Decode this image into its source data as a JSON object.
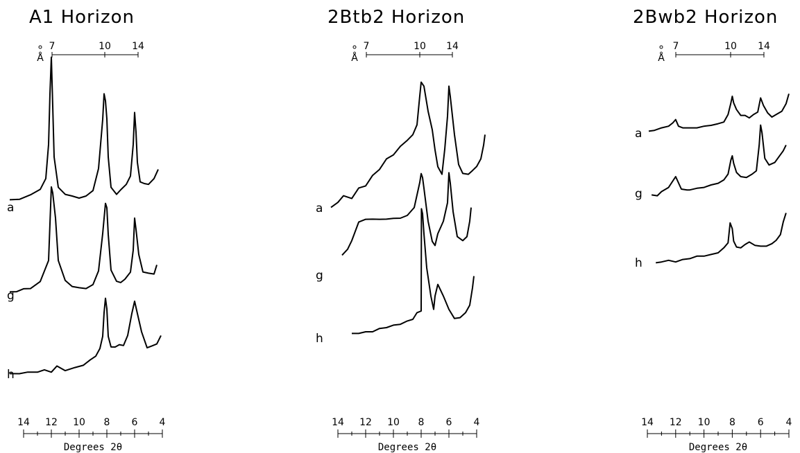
{
  "chart_data": [
    {
      "type": "line",
      "title": "A1 Horizon",
      "d_spacing_unit": "Å",
      "d_spacing_ticks": [
        "7",
        "10",
        "14"
      ],
      "xlabel": "Degrees 2θ",
      "x_ticks": [
        "14",
        "12",
        "10",
        "8",
        "6",
        "4"
      ],
      "xlim": [
        14,
        4
      ],
      "samples": [
        {
          "name": "a",
          "x": [
            15.0,
            14.3,
            13.5,
            12.8,
            12.4,
            12.2,
            12.1,
            12.0,
            11.9,
            11.8,
            11.5,
            11.0,
            10.5,
            10.0,
            9.5,
            9.0,
            8.6,
            8.3,
            8.2,
            8.1,
            8.0,
            7.9,
            7.7,
            7.3,
            7.0,
            6.6,
            6.3,
            6.1,
            6.0,
            5.9,
            5.8,
            5.6,
            5.3,
            5.0,
            4.6,
            4.3
          ],
          "y": [
            0.5,
            0.6,
            0.9,
            1.4,
            2.2,
            5.0,
            9.0,
            12.0,
            8.0,
            4.0,
            1.5,
            1.0,
            0.8,
            0.7,
            0.8,
            1.3,
            3.0,
            7.0,
            9.0,
            8.5,
            7.0,
            4.0,
            1.5,
            1.0,
            1.3,
            1.8,
            2.4,
            5.0,
            7.5,
            6.0,
            3.5,
            2.0,
            1.8,
            1.8,
            2.2,
            3.0
          ]
        },
        {
          "name": "g",
          "x": [
            15.0,
            14.5,
            14.0,
            13.5,
            12.8,
            12.2,
            12.0,
            11.9,
            11.7,
            11.5,
            11.0,
            10.5,
            10.0,
            9.5,
            9.0,
            8.6,
            8.3,
            8.1,
            8.0,
            7.9,
            7.7,
            7.3,
            7.0,
            6.7,
            6.3,
            6.1,
            6.0,
            5.9,
            5.7,
            5.4,
            5.0,
            4.6,
            4.4
          ],
          "y": [
            0.4,
            0.5,
            0.7,
            0.8,
            1.4,
            3.5,
            10.5,
            10.0,
            7.5,
            3.5,
            1.5,
            1.0,
            0.8,
            0.8,
            1.1,
            2.5,
            6.0,
            9.0,
            8.5,
            6.0,
            2.5,
            1.5,
            1.3,
            1.7,
            2.3,
            4.5,
            7.5,
            6.5,
            4.0,
            2.4,
            2.2,
            2.2,
            3.0
          ]
        },
        {
          "name": "h",
          "x": [
            15.0,
            14.3,
            13.7,
            13.0,
            12.5,
            12.0,
            11.6,
            11.0,
            10.3,
            9.7,
            9.2,
            8.8,
            8.5,
            8.3,
            8.2,
            8.1,
            8.0,
            7.9,
            7.7,
            7.4,
            7.1,
            6.8,
            6.5,
            6.2,
            6.0,
            5.8,
            5.5,
            5.1,
            4.8,
            4.4,
            4.1
          ],
          "y": [
            0.0,
            0.1,
            0.2,
            0.3,
            0.5,
            0.3,
            1.0,
            0.5,
            0.8,
            1.2,
            1.8,
            2.4,
            3.3,
            5.0,
            8.0,
            10.0,
            8.5,
            5.0,
            3.5,
            3.6,
            3.8,
            3.8,
            5.0,
            8.0,
            9.5,
            8.0,
            5.5,
            3.5,
            3.6,
            4.0,
            5.0
          ]
        }
      ]
    },
    {
      "type": "line",
      "title": "2Btb2 Horizon",
      "d_spacing_unit": "Å",
      "d_spacing_ticks": [
        "7",
        "10",
        "14"
      ],
      "xlabel": "Degrees 2θ",
      "x_ticks": [
        "14",
        "12",
        "10",
        "8",
        "6",
        "4"
      ],
      "xlim": [
        14,
        4
      ],
      "samples": [
        {
          "name": "a",
          "x": [
            14.5,
            14.0,
            13.6,
            13.0,
            12.5,
            12.0,
            11.5,
            11.0,
            10.5,
            10.0,
            9.5,
            9.0,
            8.6,
            8.3,
            8.1,
            8.0,
            7.8,
            7.5,
            7.2,
            7.0,
            6.8,
            6.5,
            6.3,
            6.1,
            6.0,
            5.9,
            5.6,
            5.3,
            5.0,
            4.6,
            4.3,
            4.0,
            3.7,
            3.5,
            3.4
          ],
          "y": [
            0.0,
            0.6,
            1.2,
            1.0,
            2.0,
            2.3,
            3.3,
            4.0,
            5.0,
            5.5,
            6.3,
            7.0,
            7.5,
            8.6,
            11.5,
            13.0,
            12.5,
            10.0,
            8.0,
            6.0,
            4.2,
            3.5,
            6.0,
            9.5,
            12.5,
            11.5,
            7.5,
            4.5,
            3.5,
            3.5,
            3.8,
            4.3,
            5.0,
            6.5,
            7.5
          ]
        },
        {
          "name": "g",
          "x": [
            13.7,
            13.3,
            13.0,
            12.5,
            12.0,
            11.5,
            11.0,
            10.5,
            10.0,
            9.5,
            9.0,
            8.5,
            8.1,
            8.0,
            7.9,
            7.8,
            7.5,
            7.2,
            7.0,
            6.8,
            6.4,
            6.1,
            6.0,
            5.9,
            5.7,
            5.4,
            5.0,
            4.7,
            4.5,
            4.4
          ],
          "y": [
            1.5,
            2.2,
            3.0,
            5.0,
            5.2,
            5.3,
            5.2,
            5.3,
            5.3,
            5.4,
            5.6,
            6.5,
            9.0,
            10.0,
            9.5,
            8.5,
            5.0,
            3.0,
            2.5,
            3.8,
            5.0,
            7.0,
            10.0,
            9.0,
            6.0,
            3.5,
            3.0,
            3.5,
            5.0,
            6.5
          ]
        },
        {
          "name": "h",
          "x": [
            13.0,
            12.5,
            12.0,
            11.5,
            11.0,
            10.5,
            10.0,
            9.5,
            9.0,
            8.6,
            8.3,
            8.0,
            7.98,
            7.9,
            7.8,
            7.6,
            7.3,
            7.1,
            7.0,
            6.8,
            6.4,
            6.0,
            5.6,
            5.2,
            4.8,
            4.5,
            4.3,
            4.2
          ],
          "y": [
            0.0,
            0.1,
            0.2,
            0.3,
            0.6,
            0.8,
            1.0,
            1.2,
            1.5,
            1.8,
            2.5,
            2.8,
            15.0,
            14.5,
            12.0,
            8.0,
            4.5,
            3.0,
            4.5,
            6.0,
            4.5,
            3.0,
            1.8,
            2.0,
            2.5,
            3.5,
            5.5,
            7.0
          ]
        }
      ]
    },
    {
      "type": "line",
      "title": "2Bwb2 Horizon",
      "d_spacing_unit": "Å",
      "d_spacing_ticks": [
        "7",
        "10",
        "14"
      ],
      "xlabel": "Degrees 2θ",
      "x_ticks": [
        "14",
        "12",
        "10",
        "8",
        "6",
        "4"
      ],
      "xlim": [
        14,
        4
      ],
      "samples": [
        {
          "name": "a",
          "x": [
            13.9,
            13.5,
            13.0,
            12.5,
            12.2,
            12.0,
            11.8,
            11.5,
            11.0,
            10.5,
            10.0,
            9.5,
            9.0,
            8.6,
            8.3,
            8.1,
            8.0,
            7.9,
            7.7,
            7.4,
            7.1,
            6.8,
            6.5,
            6.2,
            6.0,
            5.8,
            5.5,
            5.2,
            4.9,
            4.5,
            4.2,
            4.0
          ],
          "y": [
            0.0,
            0.2,
            0.4,
            0.7,
            1.0,
            1.5,
            0.6,
            0.5,
            0.4,
            0.5,
            0.6,
            0.8,
            0.9,
            1.2,
            2.0,
            3.5,
            4.2,
            3.5,
            2.6,
            2.0,
            1.9,
            1.7,
            2.0,
            2.4,
            4.0,
            3.2,
            2.2,
            1.8,
            2.0,
            2.5,
            3.3,
            4.6
          ]
        },
        {
          "name": "g",
          "x": [
            13.7,
            13.3,
            13.0,
            12.5,
            12.0,
            11.6,
            11.2,
            11.0,
            10.5,
            10.0,
            9.5,
            9.0,
            8.6,
            8.3,
            8.1,
            8.0,
            7.9,
            7.7,
            7.4,
            7.0,
            6.6,
            6.3,
            6.1,
            6.0,
            5.9,
            5.7,
            5.4,
            5.0,
            4.7,
            4.4,
            4.2
          ],
          "y": [
            0.0,
            0.0,
            0.4,
            1.0,
            2.2,
            0.8,
            0.6,
            0.7,
            0.8,
            1.0,
            1.2,
            1.5,
            1.8,
            2.6,
            4.2,
            4.8,
            3.8,
            2.8,
            2.2,
            2.2,
            2.5,
            3.0,
            6.0,
            8.5,
            7.5,
            4.5,
            3.6,
            4.0,
            4.6,
            5.4,
            6.0
          ]
        },
        {
          "name": "h",
          "x": [
            13.4,
            13.0,
            12.5,
            12.0,
            11.5,
            11.0,
            10.5,
            10.0,
            9.5,
            9.0,
            8.6,
            8.3,
            8.15,
            8.0,
            7.9,
            7.7,
            7.4,
            7.1,
            6.8,
            6.4,
            6.0,
            5.6,
            5.2,
            4.9,
            4.6,
            4.4,
            4.2
          ],
          "y": [
            0.0,
            0.2,
            0.3,
            0.2,
            0.4,
            0.6,
            0.8,
            0.9,
            1.0,
            1.3,
            1.8,
            2.5,
            4.8,
            4.2,
            2.6,
            2.0,
            1.8,
            2.3,
            2.5,
            2.2,
            2.0,
            2.1,
            2.3,
            2.8,
            3.4,
            5.0,
            6.0
          ]
        }
      ]
    }
  ]
}
